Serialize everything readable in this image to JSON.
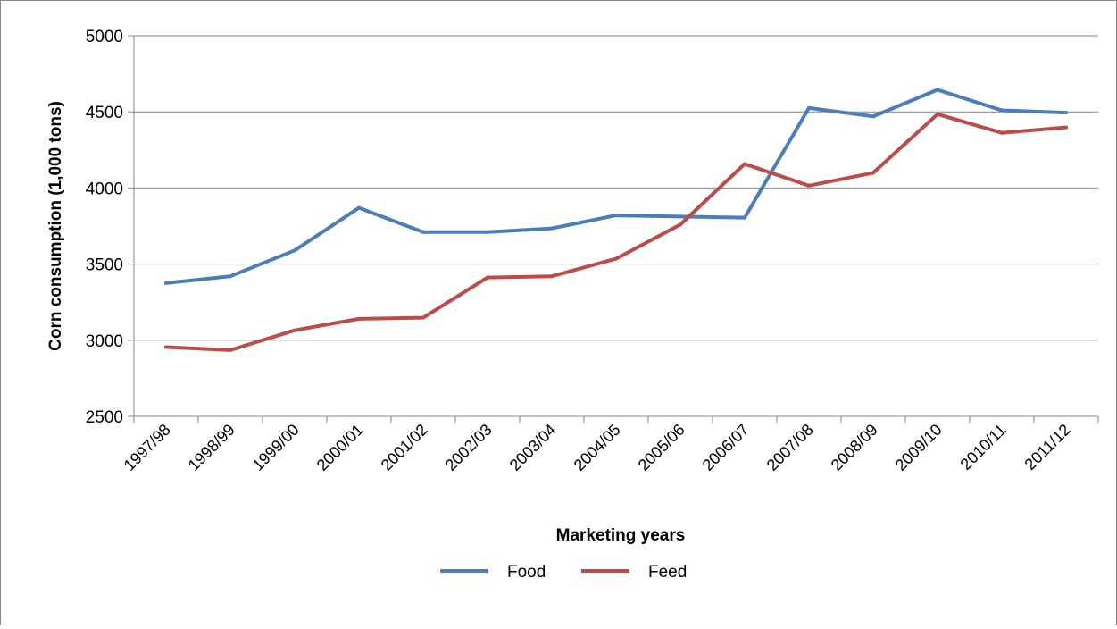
{
  "chart_data": {
    "type": "line",
    "title": "",
    "xlabel": "Marketing years",
    "ylabel": "Corn consumption (1,000 tons)",
    "categories": [
      "1997/98",
      "1998/99",
      "1999/00",
      "2000/01",
      "2001/02",
      "2002/03",
      "2003/04",
      "2004/05",
      "2005/06",
      "2006/07",
      "2007/08",
      "2008/09",
      "2009/10",
      "2010/11",
      "2011/12"
    ],
    "ylim": [
      2500,
      5000
    ],
    "yticks": [
      "2500",
      "3000",
      "3500",
      "4000",
      "4500",
      "5000"
    ],
    "grid": "horizontal",
    "legend_position": "bottom",
    "series": [
      {
        "name": "Food",
        "color": "#4a7ebb",
        "values": [
          3375,
          3420,
          3590,
          3870,
          3710,
          3710,
          3735,
          3820,
          3812,
          3805,
          4525,
          4470,
          4645,
          4510,
          4495
        ]
      },
      {
        "name": "Feed",
        "color": "#be4b48",
        "values": [
          2955,
          2935,
          3065,
          3140,
          3148,
          3412,
          3420,
          3535,
          3760,
          4158,
          4015,
          4100,
          4485,
          4362,
          4398
        ]
      }
    ]
  }
}
